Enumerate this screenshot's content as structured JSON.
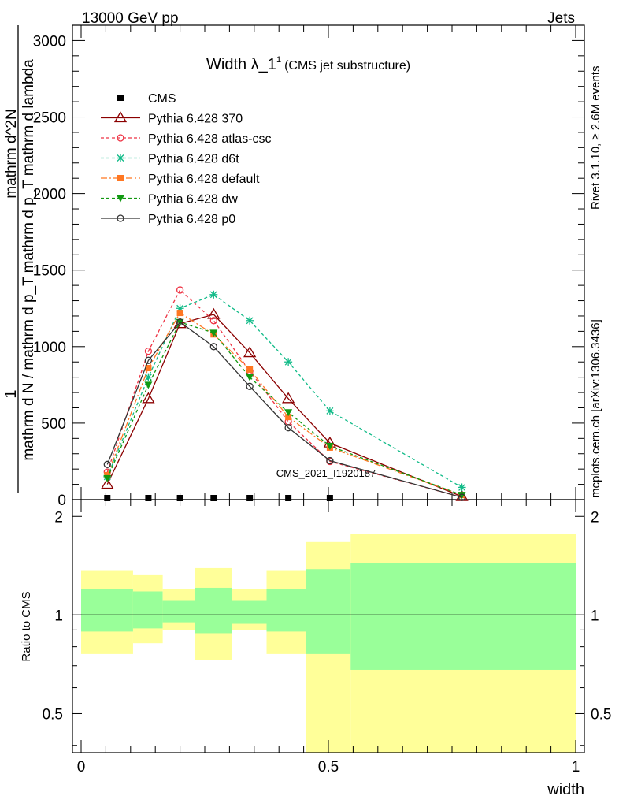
{
  "header": {
    "left": "13000 GeV pp",
    "right": "Jets",
    "side_top": "Rivet 3.1.10, ≥ 2.6M events",
    "side_bottom": "mcplots.cern.ch [arXiv:1306.3436]",
    "watermark": "CMS_2021_I1920187"
  },
  "colors": {
    "cms": "#000000",
    "p370": "#8b0000",
    "atlas": "#ee3344",
    "d6t": "#11bb88",
    "default": "#ff7722",
    "dw": "#119911",
    "p0": "#333333",
    "band_outer": "#ffff99",
    "band_inner": "#99ff99"
  },
  "chart_data": [
    {
      "type": "line",
      "title": "Width λ_1",
      "title_sup": "1",
      "title_sub": "(CMS jet substructure)",
      "xlabel": "width",
      "ylabel_num": "1",
      "ylabel_den": "mathrm d N / mathrm d p_T mathrm d p_T mathrm d lambda",
      "ylabel_top": "mathrm d^2N",
      "xlim": [
        0,
        1
      ],
      "ylim": [
        0,
        3100
      ],
      "yticks": [
        0,
        500,
        1000,
        1500,
        2000,
        2500,
        3000
      ],
      "ytick_labels": [
        "0",
        "500",
        "1000",
        "1500",
        "2000",
        "2500",
        "3000"
      ],
      "x": [
        0.053,
        0.136,
        0.2,
        0.268,
        0.341,
        0.419,
        0.503,
        0.77
      ],
      "series": [
        {
          "name": "CMS",
          "key": "cms",
          "marker": "square",
          "dash": "",
          "values": [
            0,
            0,
            0,
            0,
            0,
            0,
            0,
            null
          ],
          "x": [
            0.053,
            0.136,
            0.2,
            0.268,
            0.341,
            0.419,
            0.503,
            0.77
          ]
        },
        {
          "name": "Pythia 6.428 370",
          "key": "p370",
          "marker": "triangle-open",
          "dash": "",
          "values": [
            100,
            660,
            1150,
            1210,
            960,
            660,
            370,
            20
          ]
        },
        {
          "name": "Pythia 6.428 atlas-csc",
          "key": "atlas",
          "marker": "circle-open",
          "dash": "4,3",
          "values": [
            180,
            970,
            1370,
            1170,
            840,
            510,
            250,
            15
          ]
        },
        {
          "name": "Pythia 6.428 d6t",
          "key": "d6t",
          "marker": "star",
          "dash": "4,3",
          "values": [
            150,
            800,
            1250,
            1340,
            1170,
            900,
            580,
            80
          ]
        },
        {
          "name": "Pythia 6.428 default",
          "key": "default",
          "marker": "square",
          "dash": "8,3,2,3",
          "values": [
            160,
            860,
            1220,
            1080,
            850,
            540,
            340,
            30
          ]
        },
        {
          "name": "Pythia 6.428 dw",
          "key": "dw",
          "marker": "triangle-down",
          "dash": "4,3",
          "values": [
            140,
            750,
            1160,
            1090,
            800,
            570,
            350,
            30
          ]
        },
        {
          "name": "Pythia 6.428 p0",
          "key": "p0",
          "marker": "circle-open",
          "dash": "",
          "values": [
            230,
            910,
            1160,
            1000,
            740,
            470,
            255,
            15
          ]
        }
      ]
    },
    {
      "type": "area",
      "ylabel": "Ratio to CMS",
      "xlabel": "width",
      "xlim": [
        0,
        1
      ],
      "ylim": [
        0.38,
        2.25
      ],
      "xticks": [
        0,
        0.5,
        1
      ],
      "xtick_labels": [
        "0",
        "0.5",
        "1"
      ],
      "yticks": [
        0.5,
        1,
        2
      ],
      "ytick_labels": [
        "0.5",
        "1",
        "2"
      ],
      "reference": 1,
      "bins": [
        {
          "lo": 0.0,
          "hi": 0.105,
          "out_lo": 0.76,
          "out_hi": 1.37,
          "in_lo": 0.89,
          "in_hi": 1.2
        },
        {
          "lo": 0.105,
          "hi": 0.165,
          "out_lo": 0.82,
          "out_hi": 1.33,
          "in_lo": 0.91,
          "in_hi": 1.18
        },
        {
          "lo": 0.165,
          "hi": 0.23,
          "out_lo": 0.9,
          "out_hi": 1.2,
          "in_lo": 0.95,
          "in_hi": 1.11
        },
        {
          "lo": 0.23,
          "hi": 0.305,
          "out_lo": 0.73,
          "out_hi": 1.39,
          "in_lo": 0.88,
          "in_hi": 1.21
        },
        {
          "lo": 0.305,
          "hi": 0.375,
          "out_lo": 0.9,
          "out_hi": 1.2,
          "in_lo": 0.94,
          "in_hi": 1.11
        },
        {
          "lo": 0.375,
          "hi": 0.455,
          "out_lo": 0.76,
          "out_hi": 1.37,
          "in_lo": 0.89,
          "in_hi": 1.2
        },
        {
          "lo": 0.455,
          "hi": 0.545,
          "out_lo": 0.38,
          "out_hi": 1.67,
          "in_lo": 0.76,
          "in_hi": 1.38
        },
        {
          "lo": 0.545,
          "hi": 1.0,
          "out_lo": 0.38,
          "out_hi": 1.77,
          "in_lo": 0.68,
          "in_hi": 1.44
        }
      ]
    }
  ]
}
